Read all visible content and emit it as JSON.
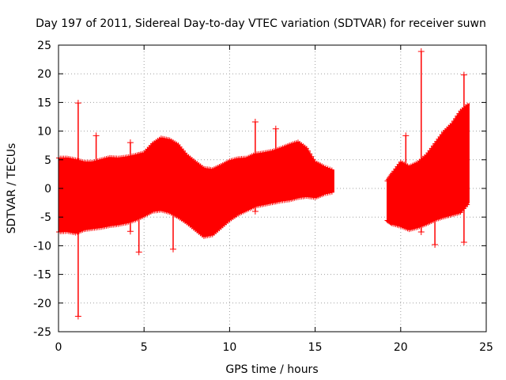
{
  "chart_data": {
    "type": "scatter",
    "title": "Day 197 of 2011, Sidereal Day-to-day VTEC variation (SDTVAR) for receiver suwn",
    "xlabel": "GPS time / hours",
    "ylabel": "SDTVAR / TECUs",
    "xlim": [
      0,
      25
    ],
    "ylim": [
      -25,
      25
    ],
    "xticks": [
      "0",
      "5",
      "10",
      "15",
      "20",
      "25"
    ],
    "yticks": [
      "25",
      "20",
      "15",
      "10",
      "5",
      "0",
      "-5",
      "-10",
      "-15",
      "-20",
      "-25"
    ],
    "grid": true,
    "marker": "+",
    "color": "#ff0000",
    "segments": [
      {
        "name": "segment-1",
        "x_range": [
          0,
          16.1
        ]
      },
      {
        "name": "segment-2",
        "x_range": [
          19.2,
          24.0
        ]
      }
    ],
    "envelope_upper": [
      [
        0,
        5.3
      ],
      [
        0.5,
        5.3
      ],
      [
        1.0,
        5.0
      ],
      [
        1.5,
        4.6
      ],
      [
        2.0,
        4.6
      ],
      [
        2.5,
        5.0
      ],
      [
        3.0,
        5.4
      ],
      [
        3.5,
        5.3
      ],
      [
        4.0,
        5.5
      ],
      [
        4.5,
        5.8
      ],
      [
        5.0,
        6.2
      ],
      [
        5.5,
        7.8
      ],
      [
        6.0,
        8.8
      ],
      [
        6.5,
        8.5
      ],
      [
        7.0,
        7.6
      ],
      [
        7.5,
        5.8
      ],
      [
        8.0,
        4.6
      ],
      [
        8.5,
        3.5
      ],
      [
        9.0,
        3.3
      ],
      [
        9.5,
        4.0
      ],
      [
        10.0,
        4.8
      ],
      [
        10.5,
        5.2
      ],
      [
        11.0,
        5.3
      ],
      [
        11.5,
        6.0
      ],
      [
        12.0,
        6.2
      ],
      [
        12.5,
        6.5
      ],
      [
        13.0,
        7.0
      ],
      [
        13.5,
        7.6
      ],
      [
        14.0,
        8.1
      ],
      [
        14.5,
        7.0
      ],
      [
        15.0,
        4.6
      ],
      [
        15.5,
        3.8
      ],
      [
        16.1,
        3.1
      ],
      [
        19.2,
        1.3
      ],
      [
        19.5,
        2.6
      ],
      [
        20.0,
        4.6
      ],
      [
        20.5,
        3.8
      ],
      [
        21.0,
        4.5
      ],
      [
        21.5,
        5.8
      ],
      [
        22.0,
        7.8
      ],
      [
        22.5,
        9.8
      ],
      [
        23.0,
        11.3
      ],
      [
        23.5,
        13.5
      ],
      [
        24.0,
        14.8
      ]
    ],
    "envelope_lower": [
      [
        0,
        -7.6
      ],
      [
        0.5,
        -7.5
      ],
      [
        1.0,
        -7.8
      ],
      [
        1.5,
        -7.2
      ],
      [
        2.0,
        -7.0
      ],
      [
        2.5,
        -6.8
      ],
      [
        3.0,
        -6.5
      ],
      [
        3.5,
        -6.3
      ],
      [
        4.0,
        -6.0
      ],
      [
        4.5,
        -5.5
      ],
      [
        5.0,
        -4.8
      ],
      [
        5.5,
        -4.0
      ],
      [
        6.0,
        -3.8
      ],
      [
        6.5,
        -4.2
      ],
      [
        7.0,
        -5.0
      ],
      [
        7.5,
        -6.0
      ],
      [
        8.0,
        -7.2
      ],
      [
        8.5,
        -8.4
      ],
      [
        9.0,
        -8.1
      ],
      [
        9.5,
        -6.8
      ],
      [
        10.0,
        -5.5
      ],
      [
        10.5,
        -4.5
      ],
      [
        11.0,
        -3.8
      ],
      [
        11.5,
        -3.1
      ],
      [
        12.0,
        -2.8
      ],
      [
        12.5,
        -2.5
      ],
      [
        13.0,
        -2.2
      ],
      [
        13.5,
        -2.0
      ],
      [
        14.0,
        -1.6
      ],
      [
        14.5,
        -1.4
      ],
      [
        15.0,
        -1.6
      ],
      [
        15.5,
        -1.0
      ],
      [
        16.1,
        -0.6
      ],
      [
        19.2,
        -5.6
      ],
      [
        19.5,
        -6.2
      ],
      [
        20.0,
        -6.6
      ],
      [
        20.5,
        -7.2
      ],
      [
        21.0,
        -6.8
      ],
      [
        21.5,
        -6.2
      ],
      [
        22.0,
        -5.5
      ],
      [
        22.5,
        -5.0
      ],
      [
        23.0,
        -4.6
      ],
      [
        23.5,
        -4.2
      ],
      [
        24.0,
        -2.5
      ]
    ],
    "spikes": [
      {
        "x": 1.15,
        "ymin": -22.3,
        "ymax": 14.9
      },
      {
        "x": 2.2,
        "ymin": -4.0,
        "ymax": 9.2
      },
      {
        "x": 4.2,
        "ymin": -7.5,
        "ymax": 8.0
      },
      {
        "x": 4.7,
        "ymin": -11.1,
        "ymax": 5.8
      },
      {
        "x": 6.7,
        "ymin": -10.6,
        "ymax": 7.5
      },
      {
        "x": 11.5,
        "ymin": -4.0,
        "ymax": 11.6
      },
      {
        "x": 12.7,
        "ymin": -2.2,
        "ymax": 10.4
      },
      {
        "x": 20.3,
        "ymin": -6.5,
        "ymax": 9.2
      },
      {
        "x": 21.2,
        "ymin": -7.6,
        "ymax": 23.9
      },
      {
        "x": 22.0,
        "ymin": -9.8,
        "ymax": 7.0
      },
      {
        "x": 23.7,
        "ymin": -9.4,
        "ymax": 19.8
      }
    ]
  }
}
